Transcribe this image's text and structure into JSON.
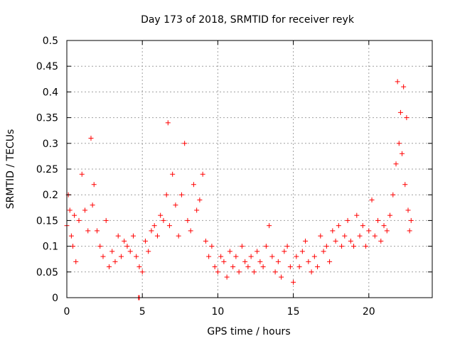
{
  "chart_data": {
    "type": "scatter",
    "title": "Day 173 of 2018, SRMTID for receiver reyk",
    "xlabel": "GPS time / hours",
    "ylabel": "SRMTID / TECUs",
    "xlim": [
      0,
      24.2
    ],
    "ylim": [
      0,
      0.5
    ],
    "x_ticks": [
      0,
      5,
      10,
      15,
      20
    ],
    "y_ticks": [
      0,
      0.05,
      0.1,
      0.15,
      0.2,
      0.25,
      0.3,
      0.35,
      0.4,
      0.45,
      0.5
    ],
    "x_tick_labels": [
      "0",
      "5",
      "10",
      "15",
      "20"
    ],
    "y_tick_labels": [
      "0",
      "0.05",
      "0.1",
      "0.15",
      "0.2",
      "0.25",
      "0.3",
      "0.35",
      "0.4",
      "0.45",
      "0.5"
    ],
    "grid": true,
    "marker": "+",
    "marker_color": "#ff0000",
    "series": [
      {
        "name": "SRMTID",
        "x": [
          0.0,
          0.1,
          0.2,
          0.3,
          0.4,
          0.5,
          0.6,
          0.8,
          1.0,
          1.2,
          1.4,
          1.6,
          1.7,
          1.8,
          2.0,
          2.2,
          2.4,
          2.6,
          2.8,
          3.0,
          3.2,
          3.4,
          3.6,
          3.8,
          4.0,
          4.2,
          4.4,
          4.6,
          4.8,
          5.0,
          5.2,
          5.4,
          5.6,
          5.8,
          6.0,
          6.2,
          6.4,
          6.6,
          6.7,
          6.8,
          7.0,
          7.2,
          7.4,
          7.6,
          7.8,
          8.0,
          8.2,
          8.4,
          8.6,
          8.8,
          9.0,
          9.2,
          9.4,
          9.6,
          9.8,
          10.0,
          10.2,
          10.4,
          10.6,
          10.8,
          11.0,
          11.2,
          11.4,
          11.6,
          11.8,
          12.0,
          12.2,
          12.4,
          12.6,
          12.8,
          13.0,
          13.2,
          13.4,
          13.6,
          13.8,
          14.0,
          14.2,
          14.4,
          14.6,
          14.8,
          15.0,
          15.2,
          15.4,
          15.6,
          15.8,
          16.0,
          16.2,
          16.4,
          16.6,
          16.8,
          17.0,
          17.2,
          17.4,
          17.6,
          17.8,
          18.0,
          18.2,
          18.4,
          18.6,
          18.8,
          19.0,
          19.2,
          19.4,
          19.6,
          19.8,
          20.0,
          20.2,
          20.4,
          20.6,
          20.8,
          21.0,
          21.2,
          21.4,
          21.6,
          21.8,
          21.9,
          22.0,
          22.1,
          22.2,
          22.3,
          22.4,
          22.5,
          22.6,
          22.7,
          22.8,
          4.75,
          4.8
        ],
        "y": [
          0.14,
          0.2,
          0.17,
          0.12,
          0.1,
          0.16,
          0.07,
          0.15,
          0.24,
          0.17,
          0.13,
          0.31,
          0.18,
          0.22,
          0.13,
          0.1,
          0.08,
          0.15,
          0.06,
          0.09,
          0.07,
          0.12,
          0.08,
          0.11,
          0.1,
          0.09,
          0.12,
          0.08,
          0.06,
          0.05,
          0.11,
          0.09,
          0.13,
          0.14,
          0.12,
          0.16,
          0.15,
          0.2,
          0.34,
          0.14,
          0.24,
          0.18,
          0.12,
          0.2,
          0.3,
          0.15,
          0.13,
          0.22,
          0.17,
          0.19,
          0.24,
          0.11,
          0.08,
          0.1,
          0.06,
          0.05,
          0.08,
          0.07,
          0.04,
          0.09,
          0.06,
          0.08,
          0.05,
          0.1,
          0.07,
          0.06,
          0.08,
          0.05,
          0.09,
          0.07,
          0.06,
          0.1,
          0.14,
          0.08,
          0.05,
          0.07,
          0.04,
          0.09,
          0.1,
          0.06,
          0.03,
          0.08,
          0.06,
          0.09,
          0.11,
          0.07,
          0.05,
          0.08,
          0.06,
          0.12,
          0.09,
          0.1,
          0.07,
          0.13,
          0.11,
          0.14,
          0.1,
          0.12,
          0.15,
          0.11,
          0.1,
          0.16,
          0.12,
          0.14,
          0.1,
          0.13,
          0.19,
          0.12,
          0.15,
          0.11,
          0.14,
          0.13,
          0.16,
          0.2,
          0.26,
          0.42,
          0.3,
          0.36,
          0.28,
          0.41,
          0.22,
          0.35,
          0.17,
          0.13,
          0.15,
          0.0,
          0.0
        ]
      }
    ]
  }
}
